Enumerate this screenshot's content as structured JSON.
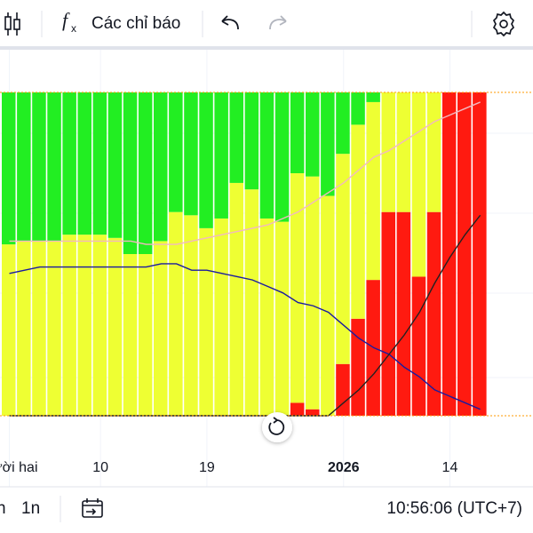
{
  "toolbar": {
    "indicators": "Các chỉ báo"
  },
  "chart_data": {
    "type": "bar",
    "stacked": true,
    "ylim": [
      0,
      100
    ],
    "categories": [
      "Mười hai",
      null,
      null,
      null,
      null,
      null,
      "10",
      null,
      null,
      null,
      null,
      null,
      null,
      "19",
      null,
      null,
      null,
      null,
      null,
      null,
      null,
      null,
      "2026",
      null,
      null,
      null,
      null,
      null,
      null,
      "14",
      null,
      null
    ],
    "series": [
      {
        "color": "#ff1a10",
        "values": [
          0,
          0,
          0,
          0,
          0,
          0,
          0,
          0,
          0,
          0,
          0,
          0,
          0,
          0,
          0,
          0,
          0,
          0,
          0,
          4,
          2,
          0,
          16,
          30,
          42,
          63,
          63,
          43,
          63,
          100,
          100,
          100
        ]
      },
      {
        "color": "#eeff33",
        "values": [
          53,
          54,
          54,
          54,
          56,
          56,
          56,
          55,
          50,
          50,
          54,
          63,
          62,
          58,
          61,
          72,
          70,
          61,
          60,
          71,
          72,
          68,
          65,
          60,
          55,
          37,
          37,
          57,
          37,
          0,
          0,
          0
        ]
      },
      {
        "color": "#22ee22",
        "values": [
          47,
          46,
          46,
          46,
          44,
          44,
          44,
          45,
          50,
          50,
          46,
          37,
          38,
          42,
          39,
          28,
          30,
          39,
          40,
          25,
          26,
          32,
          19,
          10,
          3,
          0,
          0,
          0,
          0,
          0,
          0,
          0
        ]
      }
    ],
    "lines": [
      {
        "color": "#1a1aa0",
        "values": [
          44,
          45,
          46,
          46,
          46,
          46,
          46,
          46,
          46,
          46,
          47,
          47,
          45,
          45,
          44,
          43,
          42,
          40,
          38,
          35,
          34,
          32,
          28,
          24,
          21,
          19,
          15,
          12,
          8,
          6,
          4,
          2
        ]
      },
      {
        "color": "#f2b8c0",
        "values": [
          54,
          54,
          54,
          54,
          54,
          54,
          54,
          54,
          54,
          53,
          53,
          53,
          54,
          55,
          56,
          57,
          58,
          59,
          61,
          63,
          66,
          69,
          72,
          76,
          80,
          82,
          85,
          88,
          91,
          93,
          95,
          97
        ]
      },
      {
        "color": "#222222",
        "values": [
          0,
          0,
          0,
          0,
          0,
          0,
          0,
          0,
          0,
          0,
          0,
          0,
          0,
          0,
          0,
          0,
          0,
          0,
          0,
          0,
          0,
          0,
          4,
          8,
          13,
          19,
          25,
          32,
          41,
          49,
          56,
          62
        ]
      }
    ]
  },
  "footer": {
    "ranges": [
      "n",
      "1n"
    ],
    "time": "10:56:06 (UTC+7)"
  }
}
